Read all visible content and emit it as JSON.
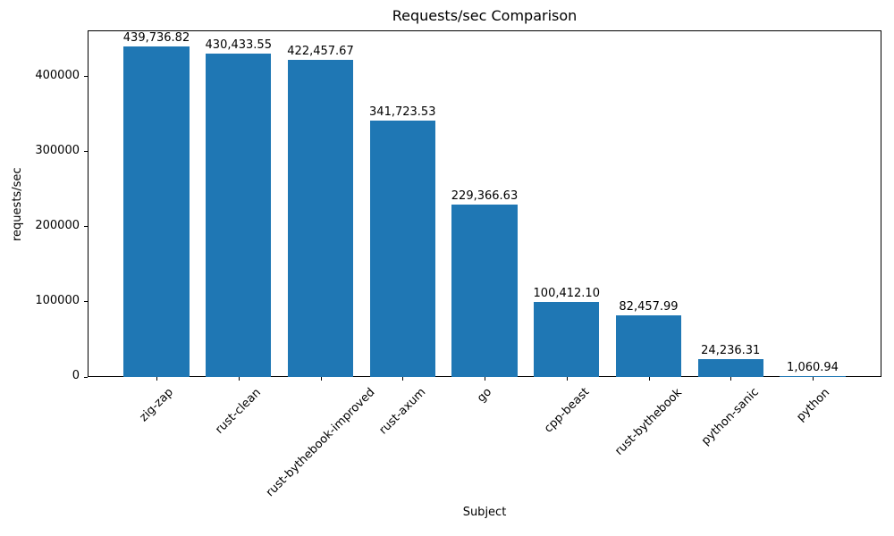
{
  "chart_data": {
    "type": "bar",
    "title": "Requests/sec Comparison",
    "xlabel": "Subject",
    "ylabel": "requests/sec",
    "categories": [
      "zig-zap",
      "rust-clean",
      "rust-bythebook-improved",
      "rust-axum",
      "go",
      "cpp-beast",
      "rust-bythebook",
      "python-sanic",
      "python"
    ],
    "values": [
      439736.82,
      430433.55,
      422457.67,
      341723.53,
      229366.63,
      100412.1,
      82457.99,
      24236.31,
      1060.94
    ],
    "bar_labels": [
      "439,736.82",
      "430,433.55",
      "422,457.67",
      "341,723.53",
      "229,366.63",
      "100,412.10",
      "82,457.99",
      "24,236.31",
      "1,060.94"
    ],
    "yticks": [
      0,
      100000,
      200000,
      300000,
      400000
    ],
    "ytick_labels": [
      "0",
      "100000",
      "200000",
      "300000",
      "400000"
    ],
    "ylim": [
      0,
      461723.66
    ],
    "bar_color": "#1f77b4",
    "background_color": "#ffffff",
    "text_color": "#000000",
    "grid": false,
    "legend": false,
    "xtick_rotation_deg": 45,
    "bar_width_frac": 0.8
  }
}
